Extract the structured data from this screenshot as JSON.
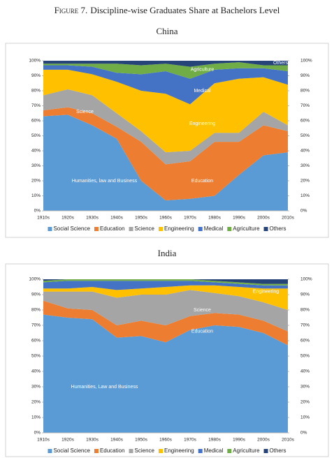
{
  "figure_label": "Figure 7.",
  "figure_title": "Discipline-wise Graduates Share at Bachelors Level",
  "chart_data": [
    {
      "type": "stacked-area",
      "title": "China",
      "categories": [
        "1910s",
        "1920s",
        "1930s",
        "1940s",
        "1950s",
        "1960s",
        "1970s",
        "1980s",
        "1990s",
        "2000s",
        "2010s"
      ],
      "series": [
        {
          "name": "Social Science",
          "color": "#5b9bd5",
          "values": [
            63,
            64,
            57,
            48,
            20,
            7,
            8,
            10,
            24,
            37,
            39
          ]
        },
        {
          "name": "Education",
          "color": "#ed7d31",
          "values": [
            4,
            5,
            8,
            8,
            26,
            24,
            25,
            36,
            22,
            20,
            14
          ]
        },
        {
          "name": "Science",
          "color": "#a5a5a5",
          "values": [
            10,
            12,
            12,
            9,
            7,
            8,
            7,
            6,
            6,
            9,
            4
          ]
        },
        {
          "name": "Engineering",
          "color": "#ffc000",
          "values": [
            17,
            13,
            14,
            21,
            27,
            39,
            31,
            33,
            36,
            23,
            27
          ]
        },
        {
          "name": "Medical",
          "color": "#4472c4",
          "values": [
            3,
            3,
            5,
            6,
            11,
            15,
            17,
            9,
            7,
            6,
            9
          ]
        },
        {
          "name": "Agriculture",
          "color": "#70ad47",
          "values": [
            1,
            1,
            2,
            6,
            6,
            5,
            8,
            4,
            4,
            2,
            4
          ]
        },
        {
          "name": "Others",
          "color": "#264478",
          "values": [
            2,
            2,
            2,
            2,
            3,
            2,
            4,
            2,
            1,
            3,
            3
          ]
        }
      ],
      "annotations": [
        "Humanities, law and Business",
        "Science",
        "Education",
        "Engineering",
        "Medical",
        "Agriculture",
        "Others"
      ],
      "ylim": [
        0,
        100
      ],
      "yticks": [
        {
          "value": 0,
          "label": "0%"
        },
        {
          "value": 10,
          "label": "10%"
        },
        {
          "value": 20,
          "label": "20%"
        },
        {
          "value": 30,
          "label": "30%"
        },
        {
          "value": 40,
          "label": "40%"
        },
        {
          "value": 50,
          "label": "50%"
        },
        {
          "value": 60,
          "label": "60%"
        },
        {
          "value": 70,
          "label": "70%"
        },
        {
          "value": 80,
          "label": "80%"
        },
        {
          "value": 90,
          "label": "90%"
        },
        {
          "value": 100,
          "label": "100%"
        }
      ],
      "y2lim": [
        0,
        100
      ],
      "y2ticks": [
        {
          "value": 0,
          "label": "0%"
        },
        {
          "value": 10,
          "label": "10%"
        },
        {
          "value": 20,
          "label": "20%"
        },
        {
          "value": 30,
          "label": "30%"
        },
        {
          "value": 40,
          "label": "40%"
        },
        {
          "value": 50,
          "label": "50%"
        },
        {
          "value": 60,
          "label": "60%"
        },
        {
          "value": 70,
          "label": "70%"
        },
        {
          "value": 80,
          "label": "80%"
        },
        {
          "value": 90,
          "label": "90%"
        },
        {
          "value": 100,
          "label": "100%"
        }
      ],
      "legend": "bottom"
    },
    {
      "type": "stacked-area",
      "title": "India",
      "categories": [
        "1910s",
        "1920s",
        "1930s",
        "1940s",
        "1950s",
        "1960s",
        "1970s",
        "1980s",
        "1990s",
        "2000s",
        "2010s"
      ],
      "series": [
        {
          "name": "Social Science",
          "color": "#5b9bd5",
          "values": [
            77,
            75,
            74,
            62,
            63,
            59,
            67,
            70,
            69,
            65,
            57
          ]
        },
        {
          "name": "Education",
          "color": "#ed7d31",
          "values": [
            9,
            6,
            6,
            8,
            10,
            11,
            9,
            8,
            8,
            8,
            9
          ]
        },
        {
          "name": "Science",
          "color": "#a5a5a5",
          "values": [
            6,
            11,
            12,
            18,
            17,
            20,
            17,
            13,
            12,
            12,
            14
          ]
        },
        {
          "name": "Engineering",
          "color": "#ffc000",
          "values": [
            2,
            2,
            3,
            5,
            4,
            5,
            3,
            5,
            6,
            9,
            14
          ]
        },
        {
          "name": "Medical",
          "color": "#4472c4",
          "values": [
            4,
            5,
            4,
            6,
            5,
            4,
            3,
            2,
            2,
            2,
            2
          ]
        },
        {
          "name": "Agriculture",
          "color": "#70ad47",
          "values": [
            1,
            1,
            1,
            1,
            1,
            1,
            1,
            1,
            1,
            1,
            1
          ]
        },
        {
          "name": "Others",
          "color": "#264478",
          "values": [
            1,
            0,
            0,
            0,
            0,
            0,
            0,
            1,
            2,
            3,
            3
          ]
        }
      ],
      "annotations": [
        "Humanities, Law and Business",
        "Education",
        "Science",
        "Engineering"
      ],
      "ylim": [
        0,
        100
      ],
      "yticks": [
        {
          "value": 0,
          "label": "0%"
        },
        {
          "value": 10,
          "label": "10%"
        },
        {
          "value": 20,
          "label": "20%"
        },
        {
          "value": 30,
          "label": "30%"
        },
        {
          "value": 40,
          "label": "40%"
        },
        {
          "value": 50,
          "label": "50%"
        },
        {
          "value": 60,
          "label": "60%"
        },
        {
          "value": 70,
          "label": "70%"
        },
        {
          "value": 80,
          "label": "80%"
        },
        {
          "value": 90,
          "label": "90%"
        },
        {
          "value": 100,
          "label": "100%"
        }
      ],
      "y2lim": [
        0,
        100
      ],
      "y2ticks": [
        {
          "value": 0,
          "label": "0%"
        },
        {
          "value": 10,
          "label": "10%"
        },
        {
          "value": 20,
          "label": "20%"
        },
        {
          "value": 30,
          "label": "30%"
        },
        {
          "value": 40,
          "label": "40%"
        },
        {
          "value": 50,
          "label": "50%"
        },
        {
          "value": 60,
          "label": "60%"
        },
        {
          "value": 70,
          "label": "70%"
        },
        {
          "value": 80,
          "label": "80%"
        },
        {
          "value": 90,
          "label": "90%"
        },
        {
          "value": 100,
          "label": "100%"
        }
      ],
      "legend": "bottom"
    }
  ]
}
